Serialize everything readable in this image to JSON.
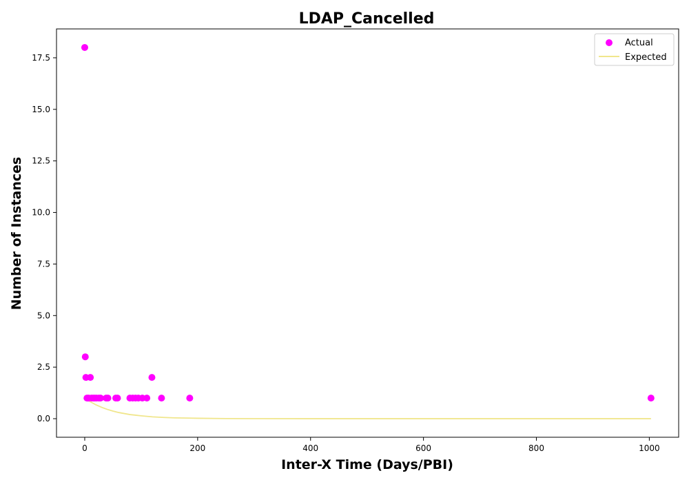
{
  "chart_data": {
    "type": "scatter",
    "title": "LDAP_Cancelled",
    "xlabel": "Inter-X Time (Days/PBI)",
    "ylabel": "Number of Instances",
    "xlim": [
      -50,
      1052
    ],
    "ylim": [
      -0.9,
      18.9
    ],
    "xticks": [
      0,
      200,
      400,
      600,
      800,
      1000
    ],
    "xtick_labels": [
      "0",
      "200",
      "400",
      "600",
      "800",
      "1000"
    ],
    "yticks": [
      0.0,
      2.5,
      5.0,
      7.5,
      10.0,
      12.5,
      15.0,
      17.5
    ],
    "ytick_labels": [
      "0.0",
      "2.5",
      "5.0",
      "7.5",
      "10.0",
      "12.5",
      "15.0",
      "17.5"
    ],
    "grid": false,
    "legend": {
      "position": "top-right",
      "entries": [
        "Actual",
        "Expected"
      ]
    },
    "series": [
      {
        "name": "Actual",
        "kind": "scatter",
        "color": "#ff00ff",
        "points": [
          [
            0,
            18
          ],
          [
            1,
            3
          ],
          [
            2,
            2
          ],
          [
            4,
            1
          ],
          [
            7,
            1
          ],
          [
            10,
            2
          ],
          [
            12,
            1
          ],
          [
            15,
            1
          ],
          [
            18,
            1
          ],
          [
            21,
            1
          ],
          [
            25,
            1
          ],
          [
            28,
            1
          ],
          [
            38,
            1
          ],
          [
            41,
            1
          ],
          [
            55,
            1
          ],
          [
            58,
            1
          ],
          [
            80,
            1
          ],
          [
            85,
            1
          ],
          [
            90,
            1
          ],
          [
            95,
            1
          ],
          [
            102,
            1
          ],
          [
            110,
            1
          ],
          [
            119,
            2
          ],
          [
            136,
            1
          ],
          [
            186,
            1
          ],
          [
            1003,
            1
          ]
        ]
      },
      {
        "name": "Expected",
        "kind": "line",
        "color": "#f0e68c",
        "x": [
          0,
          10,
          20,
          30,
          40,
          50,
          60,
          70,
          80,
          90,
          100,
          120,
          140,
          160,
          180,
          200,
          250,
          300,
          400,
          500,
          600,
          700,
          800,
          900,
          1003
        ],
        "values": [
          1.0,
          0.82,
          0.67,
          0.55,
          0.45,
          0.37,
          0.3,
          0.25,
          0.2,
          0.17,
          0.14,
          0.09,
          0.06,
          0.04,
          0.03,
          0.02,
          0.007,
          0.002,
          0,
          0,
          0,
          0,
          0,
          0,
          0
        ]
      }
    ]
  }
}
